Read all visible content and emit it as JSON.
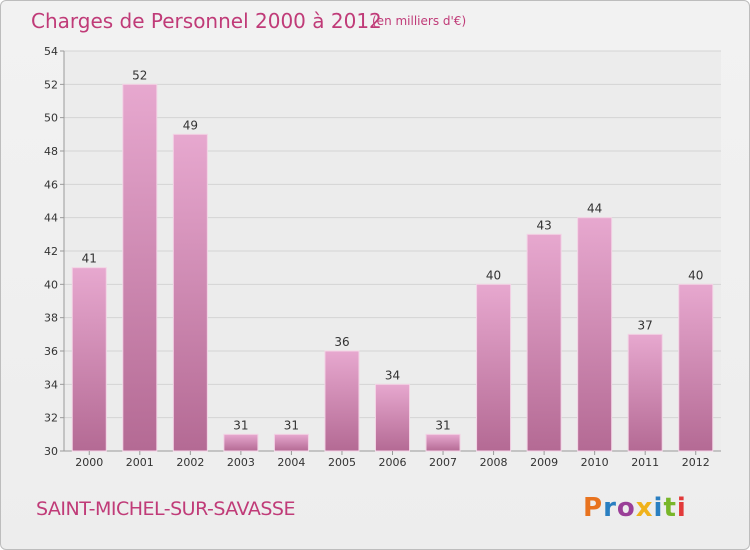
{
  "title": "Charges de Personnel 2000 à 2012",
  "subtitle": "(en milliers d'€)",
  "commune": "SAINT-MICHEL-SUR-SAVASSE",
  "logo": {
    "letters": [
      "P",
      "r",
      "o",
      "x",
      "i",
      "t",
      "i"
    ],
    "colors": [
      "#e8731f",
      "#2a7fc1",
      "#9a3f98",
      "#f0b21b",
      "#2a7fc1",
      "#78b629",
      "#e23a3a"
    ]
  },
  "colors": {
    "accent": "#c03b78",
    "bar_top": "#e7a8cf",
    "bar_bottom": "#b46a94",
    "grid": "#d4d4d4",
    "axis": "#9a9a9a"
  },
  "chart_data": {
    "type": "bar",
    "title": "Charges de Personnel 2000 à 2012",
    "subtitle": "(en milliers d'€)",
    "categories": [
      "2000",
      "2001",
      "2002",
      "2003",
      "2004",
      "2005",
      "2006",
      "2007",
      "2008",
      "2009",
      "2010",
      "2011",
      "2012"
    ],
    "values": [
      41,
      52,
      49,
      31,
      31,
      36,
      34,
      31,
      40,
      43,
      44,
      37,
      40
    ],
    "ylim": [
      30,
      54
    ],
    "yticks": [
      30,
      32,
      34,
      36,
      38,
      40,
      42,
      44,
      46,
      48,
      50,
      52,
      54
    ],
    "grid": true,
    "xlabel": "",
    "ylabel": ""
  }
}
